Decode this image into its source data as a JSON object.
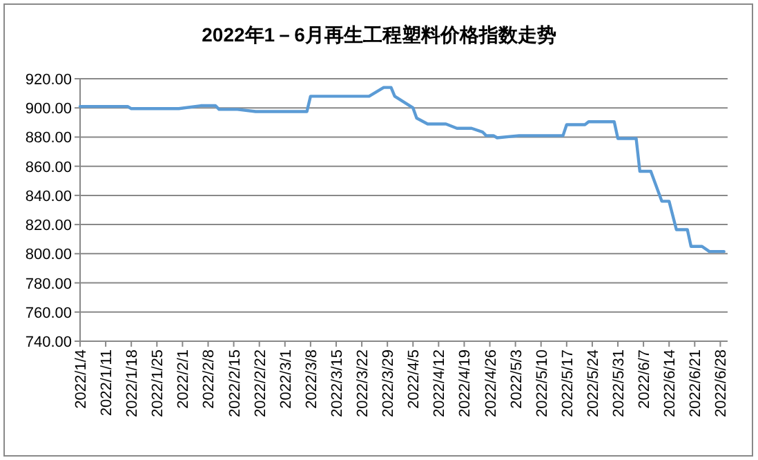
{
  "chart_data": {
    "type": "line",
    "title": "2022年1－6月再生工程塑料价格指数走势",
    "series": [
      {
        "color": "#5b9bd5",
        "x": [
          "2022-01-04",
          "2022-01-17",
          "2022-01-18",
          "2022-01-31",
          "2022-02-06",
          "2022-02-10",
          "2022-02-11",
          "2022-02-16",
          "2022-02-21",
          "2022-03-07",
          "2022-03-08",
          "2022-03-24",
          "2022-03-28",
          "2022-03-30",
          "2022-03-31",
          "2022-04-05",
          "2022-04-06",
          "2022-04-09",
          "2022-04-14",
          "2022-04-17",
          "2022-04-21",
          "2022-04-24",
          "2022-04-25",
          "2022-04-27",
          "2022-04-28",
          "2022-05-04",
          "2022-05-16",
          "2022-05-17",
          "2022-05-22",
          "2022-05-23",
          "2022-05-30",
          "2022-05-31",
          "2022-06-05",
          "2022-06-06",
          "2022-06-09",
          "2022-06-12",
          "2022-06-14",
          "2022-06-16",
          "2022-06-19",
          "2022-06-20",
          "2022-06-23",
          "2022-06-25",
          "2022-06-29"
        ],
        "values": [
          901,
          901,
          899.5,
          899.5,
          901.5,
          901.5,
          899,
          899,
          897.5,
          897.5,
          908,
          908,
          914,
          914,
          908,
          900,
          893,
          889,
          889,
          886,
          886,
          883.5,
          881,
          881,
          879.5,
          881,
          881,
          888.5,
          888.5,
          890.5,
          890.5,
          879,
          879,
          856.5,
          856.5,
          836,
          836,
          816.5,
          816.5,
          805,
          805,
          801.5,
          801.5
        ]
      }
    ],
    "xlim": [
      "2022-01-04",
      "2022-06-30"
    ],
    "xticks": [
      {
        "value": "2022-01-04",
        "label": "2022/1/4"
      },
      {
        "value": "2022-01-11",
        "label": "2022/1/11"
      },
      {
        "value": "2022-01-18",
        "label": "2022/1/18"
      },
      {
        "value": "2022-01-25",
        "label": "2022/1/25"
      },
      {
        "value": "2022-02-01",
        "label": "2022/2/1"
      },
      {
        "value": "2022-02-08",
        "label": "2022/2/8"
      },
      {
        "value": "2022-02-15",
        "label": "2022/2/15"
      },
      {
        "value": "2022-02-22",
        "label": "2022/2/22"
      },
      {
        "value": "2022-03-01",
        "label": "2022/3/1"
      },
      {
        "value": "2022-03-08",
        "label": "2022/3/8"
      },
      {
        "value": "2022-03-15",
        "label": "2022/3/15"
      },
      {
        "value": "2022-03-22",
        "label": "2022/3/22"
      },
      {
        "value": "2022-03-29",
        "label": "2022/3/29"
      },
      {
        "value": "2022-04-05",
        "label": "2022/4/5"
      },
      {
        "value": "2022-04-12",
        "label": "2022/4/12"
      },
      {
        "value": "2022-04-19",
        "label": "2022/4/19"
      },
      {
        "value": "2022-04-26",
        "label": "2022/4/26"
      },
      {
        "value": "2022-05-03",
        "label": "2022/5/3"
      },
      {
        "value": "2022-05-10",
        "label": "2022/5/10"
      },
      {
        "value": "2022-05-17",
        "label": "2022/5/17"
      },
      {
        "value": "2022-05-24",
        "label": "2022/5/24"
      },
      {
        "value": "2022-05-31",
        "label": "2022/5/31"
      },
      {
        "value": "2022-06-07",
        "label": "2022/6/7"
      },
      {
        "value": "2022-06-14",
        "label": "2022/6/14"
      },
      {
        "value": "2022-06-21",
        "label": "2022/6/21"
      },
      {
        "value": "2022-06-28",
        "label": "2022/6/28"
      }
    ],
    "ylim": [
      740,
      920
    ],
    "yticks": [
      {
        "value": 740,
        "label": "740.00"
      },
      {
        "value": 760,
        "label": "760.00"
      },
      {
        "value": 780,
        "label": "780.00"
      },
      {
        "value": 800,
        "label": "800.00"
      },
      {
        "value": 820,
        "label": "820.00"
      },
      {
        "value": 840,
        "label": "840.00"
      },
      {
        "value": 860,
        "label": "860.00"
      },
      {
        "value": 880,
        "label": "880.00"
      },
      {
        "value": 900,
        "label": "900.00"
      },
      {
        "value": 920,
        "label": "920.00"
      }
    ],
    "grid": "y"
  }
}
